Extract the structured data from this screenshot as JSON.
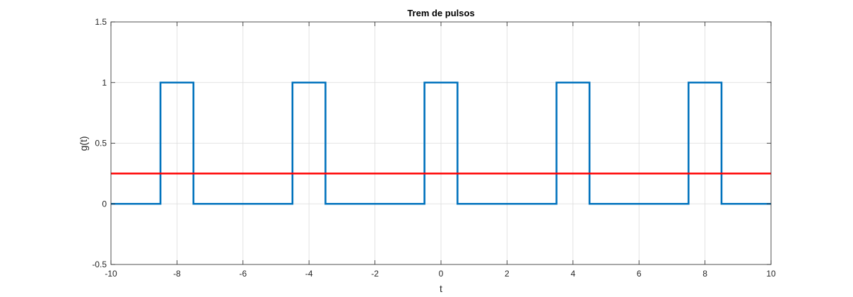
{
  "chart_data": {
    "type": "line",
    "title": "Trem de pulsos",
    "xlabel": "t",
    "ylabel": "g(t)",
    "xlim": [
      -10,
      10
    ],
    "ylim": [
      -0.5,
      1.5
    ],
    "xticks": [
      -10,
      -8,
      -6,
      -4,
      -2,
      0,
      2,
      4,
      6,
      8,
      10
    ],
    "xtick_labels": [
      "-10",
      "-8",
      "-6",
      "-4",
      "-2",
      "0",
      "2",
      "4",
      "6",
      "8",
      "10"
    ],
    "yticks": [
      -0.5,
      0,
      0.5,
      1,
      1.5
    ],
    "ytick_labels": [
      "-0.5",
      "0",
      "0.5",
      "1",
      "1.5"
    ],
    "grid": true,
    "series": [
      {
        "color": "#0072BD",
        "x": [
          -10,
          -8.5,
          -8.5,
          -7.5,
          -7.5,
          -4.5,
          -4.5,
          -3.5,
          -3.5,
          -0.5,
          -0.5,
          0.5,
          0.5,
          3.5,
          3.5,
          4.5,
          4.5,
          7.5,
          7.5,
          8.5,
          8.5,
          10
        ],
        "y": [
          0,
          0,
          1,
          1,
          0,
          0,
          1,
          1,
          0,
          0,
          1,
          1,
          0,
          0,
          1,
          1,
          0,
          0,
          1,
          1,
          0,
          0
        ]
      },
      {
        "color": "#FF0000",
        "x": [
          -10,
          10
        ],
        "y": [
          0.25,
          0.25
        ]
      }
    ]
  }
}
